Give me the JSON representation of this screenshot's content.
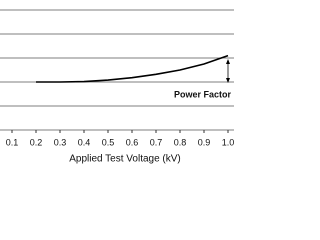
{
  "chart_data": {
    "type": "line",
    "x_label": "Applied Test Voltage (kV)",
    "annotation": "Power Factor",
    "x": [
      0.2,
      0.3,
      0.4,
      0.5,
      0.6,
      0.7,
      0.8,
      0.9,
      1.0
    ],
    "series": [
      {
        "color": "#000000",
        "values": [
          2.0,
          2.0,
          2.02,
          2.08,
          2.18,
          2.32,
          2.5,
          2.75,
          3.1
        ]
      }
    ],
    "xlim": [
      0.05,
      1.025
    ],
    "xticks": [
      0.1,
      0.2,
      0.3,
      0.4,
      0.5,
      0.6,
      0.7,
      0.8,
      0.9,
      {
        "value": 1.0,
        "label": "1.0"
      }
    ],
    "ylim": [
      0,
      5
    ],
    "yticks": [
      0,
      1,
      2,
      3,
      4,
      5
    ],
    "grid": true
  }
}
